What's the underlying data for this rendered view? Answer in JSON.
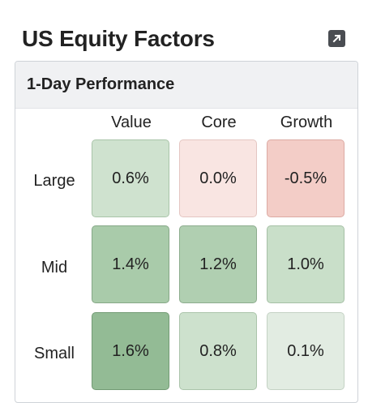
{
  "title": "US Equity Factors",
  "expand_icon": "external-link-arrow-icon",
  "panel": {
    "title": "1-Day Performance",
    "columns": [
      "Value",
      "Core",
      "Growth"
    ],
    "rows": [
      {
        "label": "Large",
        "cells": [
          {
            "value": "0.6%",
            "color": "#cfe2cf",
            "border": "#a9c4a9"
          },
          {
            "value": "0.0%",
            "color": "#f9e5e2",
            "border": "#e4c6c2"
          },
          {
            "value": "-0.5%",
            "color": "#f3cdc7",
            "border": "#dcaaa3"
          }
        ]
      },
      {
        "label": "Mid",
        "cells": [
          {
            "value": "1.4%",
            "color": "#a9cbaa",
            "border": "#86a887"
          },
          {
            "value": "1.2%",
            "color": "#b0cfb1",
            "border": "#8dac8e"
          },
          {
            "value": "1.0%",
            "color": "#c9dfc9",
            "border": "#a6c0a6"
          }
        ]
      },
      {
        "label": "Small",
        "cells": [
          {
            "value": "1.6%",
            "color": "#93bb95",
            "border": "#739b75"
          },
          {
            "value": "0.8%",
            "color": "#cde1cd",
            "border": "#abc4ab"
          },
          {
            "value": "0.1%",
            "color": "#e2ece2",
            "border": "#c4d2c4"
          }
        ]
      }
    ]
  }
}
